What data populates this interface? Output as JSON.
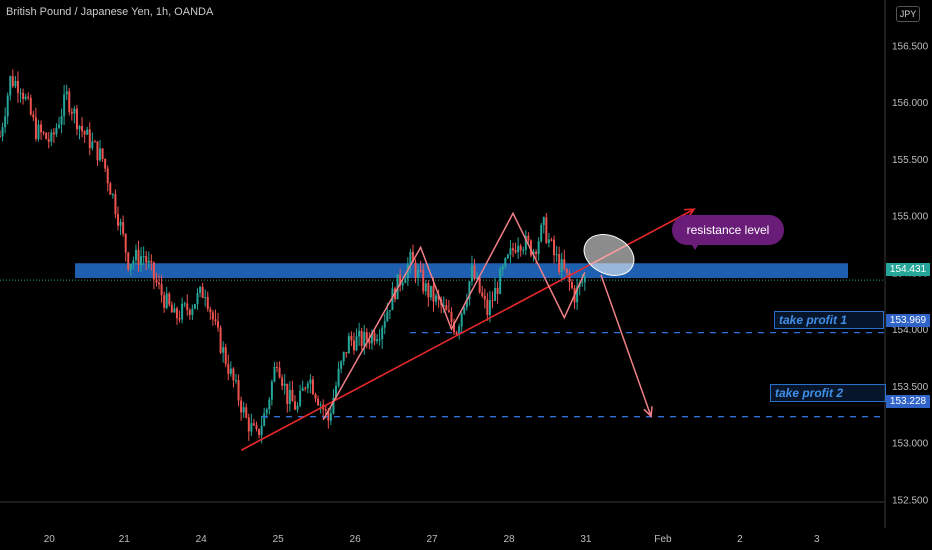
{
  "chart_title": "British Pound / Japanese Yen, 1h, OANDA",
  "currency_badge": "JPY",
  "colors": {
    "background": "#000000",
    "up": "#26a69a",
    "down": "#ef5350",
    "resistance": "#1e5fb0",
    "trendline": "#e8282b",
    "pattern": "#f07f86",
    "dashed": "#2f6fd6",
    "current_price": "#26a69a",
    "note": "#6a1d78"
  },
  "price_tags": {
    "current": "154.431",
    "take_profit_1": "153.969",
    "take_profit_2": "153.228"
  },
  "annotations": {
    "resistance_label": "resistance level",
    "take_profit_1": "take profit 1",
    "take_profit_2": "take profit 2"
  },
  "chart_data": {
    "type": "candlestick",
    "title": "British Pound / Japanese Yen, 1h, OANDA",
    "ylim": [
      152.3,
      156.75
    ],
    "y_ticks": [
      "156.500",
      "156.000",
      "155.500",
      "155.000",
      "154.500",
      "154.000",
      "153.500",
      "153.000",
      "152.500"
    ],
    "y_tick_values": [
      156.5,
      156.0,
      155.5,
      155.0,
      154.5,
      154.0,
      153.5,
      153.0,
      152.5
    ],
    "x_ticks": [
      "20",
      "21",
      "24",
      "25",
      "26",
      "27",
      "28",
      "31",
      "Feb",
      "2",
      "3"
    ],
    "x_tick_index": [
      10,
      25,
      40,
      55,
      70,
      85,
      100,
      115,
      130,
      145,
      160
    ],
    "price_path": [
      [
        0,
        155.7
      ],
      [
        2,
        156.2
      ],
      [
        4,
        156.15
      ],
      [
        7,
        155.75
      ],
      [
        10,
        155.65
      ],
      [
        13,
        156.05
      ],
      [
        16,
        155.75
      ],
      [
        20,
        155.5
      ],
      [
        23,
        155.0
      ],
      [
        25,
        154.6
      ],
      [
        28,
        154.65
      ],
      [
        31,
        154.35
      ],
      [
        34,
        154.1
      ],
      [
        37,
        154.2
      ],
      [
        40,
        154.35
      ],
      [
        42,
        154.0
      ],
      [
        45,
        153.6
      ],
      [
        48,
        153.2
      ],
      [
        50,
        153.05
      ],
      [
        52,
        153.3
      ],
      [
        54,
        153.75
      ],
      [
        56,
        153.4
      ],
      [
        58,
        153.3
      ],
      [
        60,
        153.6
      ],
      [
        62,
        153.4
      ],
      [
        64,
        153.2
      ],
      [
        66,
        153.6
      ],
      [
        68,
        153.9
      ],
      [
        71,
        153.9
      ],
      [
        74,
        154.0
      ],
      [
        77,
        154.35
      ],
      [
        80,
        154.6
      ],
      [
        83,
        154.35
      ],
      [
        86,
        154.2
      ],
      [
        89,
        154.0
      ],
      [
        92,
        154.5
      ],
      [
        95,
        154.15
      ],
      [
        98,
        154.5
      ],
      [
        101,
        154.8
      ],
      [
        104,
        154.7
      ],
      [
        106,
        154.9
      ],
      [
        108,
        154.65
      ],
      [
        110,
        154.5
      ],
      [
        112,
        154.3
      ],
      [
        114,
        154.45
      ]
    ],
    "resistance_zone": [
      154.45,
      154.58
    ],
    "current_price": 154.431,
    "take_profit_1": 153.969,
    "take_profit_2": 153.228,
    "trendline": [
      [
        48,
        152.95
      ],
      [
        132,
        155.1
      ]
    ],
    "pattern_path": [
      [
        63,
        153.2
      ],
      [
        82,
        154.72
      ],
      [
        88,
        154.0
      ],
      [
        100,
        155.02
      ],
      [
        110,
        154.1
      ],
      [
        114,
        154.5
      ]
    ],
    "forecast_path": [
      [
        117,
        154.45
      ],
      [
        124,
        153.25
      ]
    ],
    "grid": false
  }
}
